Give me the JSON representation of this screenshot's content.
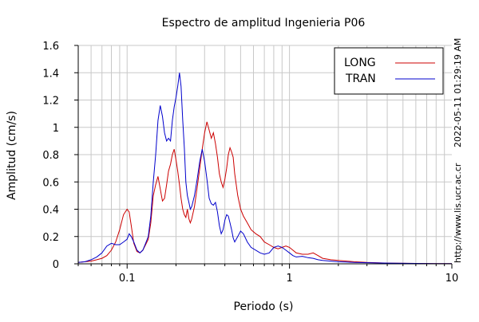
{
  "chart_data": {
    "type": "line",
    "title": "Espectro de amplitud Ingenieria P06",
    "xlabel": "Periodo (s)",
    "ylabel": "Amplitud (cm/s)",
    "x_scale": "log",
    "xlim": [
      0.05,
      10
    ],
    "ylim": [
      0,
      1.6
    ],
    "x_ticks": [
      {
        "value": 0.1,
        "label": "0.1"
      },
      {
        "value": 1,
        "label": "1"
      },
      {
        "value": 10,
        "label": "10"
      }
    ],
    "y_ticks": [
      {
        "value": 0,
        "label": "0"
      },
      {
        "value": 0.2,
        "label": "0.2"
      },
      {
        "value": 0.4,
        "label": "0.4"
      },
      {
        "value": 0.6,
        "label": "0.6"
      },
      {
        "value": 0.8,
        "label": "0.8"
      },
      {
        "value": 1,
        "label": "1"
      },
      {
        "value": 1.2,
        "label": "1.2"
      },
      {
        "value": 1.4,
        "label": "1.4"
      },
      {
        "value": 1.6,
        "label": "1.6"
      }
    ],
    "grid": true,
    "legend_position": "top-right",
    "series": [
      {
        "name": "LONG",
        "color": "#cc0000",
        "points": [
          [
            0.05,
            0.01
          ],
          [
            0.055,
            0.015
          ],
          [
            0.06,
            0.02
          ],
          [
            0.065,
            0.03
          ],
          [
            0.07,
            0.04
          ],
          [
            0.075,
            0.06
          ],
          [
            0.08,
            0.1
          ],
          [
            0.085,
            0.16
          ],
          [
            0.09,
            0.25
          ],
          [
            0.095,
            0.36
          ],
          [
            0.1,
            0.4
          ],
          [
            0.103,
            0.38
          ],
          [
            0.106,
            0.28
          ],
          [
            0.11,
            0.15
          ],
          [
            0.115,
            0.09
          ],
          [
            0.12,
            0.08
          ],
          [
            0.125,
            0.1
          ],
          [
            0.13,
            0.14
          ],
          [
            0.135,
            0.18
          ],
          [
            0.14,
            0.3
          ],
          [
            0.145,
            0.5
          ],
          [
            0.15,
            0.58
          ],
          [
            0.155,
            0.64
          ],
          [
            0.16,
            0.55
          ],
          [
            0.165,
            0.46
          ],
          [
            0.17,
            0.48
          ],
          [
            0.175,
            0.58
          ],
          [
            0.18,
            0.68
          ],
          [
            0.185,
            0.73
          ],
          [
            0.19,
            0.8
          ],
          [
            0.195,
            0.84
          ],
          [
            0.2,
            0.76
          ],
          [
            0.205,
            0.68
          ],
          [
            0.21,
            0.58
          ],
          [
            0.215,
            0.48
          ],
          [
            0.22,
            0.4
          ],
          [
            0.225,
            0.36
          ],
          [
            0.23,
            0.34
          ],
          [
            0.235,
            0.4
          ],
          [
            0.24,
            0.33
          ],
          [
            0.245,
            0.3
          ],
          [
            0.25,
            0.33
          ],
          [
            0.26,
            0.42
          ],
          [
            0.27,
            0.56
          ],
          [
            0.28,
            0.7
          ],
          [
            0.29,
            0.84
          ],
          [
            0.3,
            0.96
          ],
          [
            0.31,
            1.04
          ],
          [
            0.32,
            0.98
          ],
          [
            0.33,
            0.92
          ],
          [
            0.34,
            0.96
          ],
          [
            0.35,
            0.88
          ],
          [
            0.36,
            0.78
          ],
          [
            0.37,
            0.66
          ],
          [
            0.38,
            0.6
          ],
          [
            0.39,
            0.56
          ],
          [
            0.4,
            0.62
          ],
          [
            0.41,
            0.7
          ],
          [
            0.42,
            0.8
          ],
          [
            0.43,
            0.85
          ],
          [
            0.44,
            0.82
          ],
          [
            0.45,
            0.78
          ],
          [
            0.46,
            0.66
          ],
          [
            0.48,
            0.5
          ],
          [
            0.5,
            0.4
          ],
          [
            0.52,
            0.35
          ],
          [
            0.55,
            0.3
          ],
          [
            0.58,
            0.25
          ],
          [
            0.62,
            0.22
          ],
          [
            0.66,
            0.2
          ],
          [
            0.7,
            0.16
          ],
          [
            0.75,
            0.14
          ],
          [
            0.8,
            0.12
          ],
          [
            0.85,
            0.11
          ],
          [
            0.9,
            0.12
          ],
          [
            0.95,
            0.13
          ],
          [
            1.0,
            0.12
          ],
          [
            1.05,
            0.1
          ],
          [
            1.1,
            0.08
          ],
          [
            1.2,
            0.07
          ],
          [
            1.3,
            0.07
          ],
          [
            1.4,
            0.08
          ],
          [
            1.5,
            0.06
          ],
          [
            1.6,
            0.04
          ],
          [
            1.8,
            0.03
          ],
          [
            2.0,
            0.025
          ],
          [
            2.5,
            0.015
          ],
          [
            3.0,
            0.01
          ],
          [
            4.0,
            0.005
          ],
          [
            6.0,
            0.003
          ],
          [
            8.0,
            0.002
          ],
          [
            10.0,
            0.001
          ]
        ]
      },
      {
        "name": "TRAN",
        "color": "#0000cc",
        "points": [
          [
            0.05,
            0.01
          ],
          [
            0.055,
            0.015
          ],
          [
            0.06,
            0.03
          ],
          [
            0.065,
            0.05
          ],
          [
            0.07,
            0.08
          ],
          [
            0.075,
            0.13
          ],
          [
            0.08,
            0.15
          ],
          [
            0.085,
            0.14
          ],
          [
            0.09,
            0.14
          ],
          [
            0.095,
            0.16
          ],
          [
            0.1,
            0.18
          ],
          [
            0.103,
            0.22
          ],
          [
            0.106,
            0.2
          ],
          [
            0.11,
            0.16
          ],
          [
            0.115,
            0.1
          ],
          [
            0.12,
            0.08
          ],
          [
            0.125,
            0.1
          ],
          [
            0.13,
            0.15
          ],
          [
            0.135,
            0.2
          ],
          [
            0.14,
            0.35
          ],
          [
            0.145,
            0.6
          ],
          [
            0.15,
            0.8
          ],
          [
            0.155,
            1.05
          ],
          [
            0.16,
            1.16
          ],
          [
            0.165,
            1.08
          ],
          [
            0.17,
            0.96
          ],
          [
            0.175,
            0.9
          ],
          [
            0.18,
            0.92
          ],
          [
            0.185,
            0.9
          ],
          [
            0.19,
            1.05
          ],
          [
            0.195,
            1.15
          ],
          [
            0.2,
            1.22
          ],
          [
            0.205,
            1.3
          ],
          [
            0.21,
            1.4
          ],
          [
            0.215,
            1.3
          ],
          [
            0.22,
            1.05
          ],
          [
            0.225,
            0.85
          ],
          [
            0.23,
            0.6
          ],
          [
            0.235,
            0.5
          ],
          [
            0.24,
            0.45
          ],
          [
            0.245,
            0.4
          ],
          [
            0.25,
            0.42
          ],
          [
            0.26,
            0.5
          ],
          [
            0.27,
            0.62
          ],
          [
            0.28,
            0.75
          ],
          [
            0.29,
            0.84
          ],
          [
            0.3,
            0.75
          ],
          [
            0.31,
            0.62
          ],
          [
            0.32,
            0.48
          ],
          [
            0.33,
            0.44
          ],
          [
            0.34,
            0.43
          ],
          [
            0.35,
            0.45
          ],
          [
            0.36,
            0.38
          ],
          [
            0.37,
            0.28
          ],
          [
            0.38,
            0.22
          ],
          [
            0.39,
            0.25
          ],
          [
            0.4,
            0.32
          ],
          [
            0.41,
            0.36
          ],
          [
            0.42,
            0.35
          ],
          [
            0.43,
            0.3
          ],
          [
            0.44,
            0.25
          ],
          [
            0.45,
            0.19
          ],
          [
            0.46,
            0.16
          ],
          [
            0.48,
            0.2
          ],
          [
            0.5,
            0.24
          ],
          [
            0.52,
            0.22
          ],
          [
            0.55,
            0.16
          ],
          [
            0.58,
            0.12
          ],
          [
            0.62,
            0.1
          ],
          [
            0.66,
            0.08
          ],
          [
            0.7,
            0.07
          ],
          [
            0.75,
            0.08
          ],
          [
            0.8,
            0.12
          ],
          [
            0.85,
            0.13
          ],
          [
            0.9,
            0.12
          ],
          [
            0.95,
            0.1
          ],
          [
            1.0,
            0.08
          ],
          [
            1.05,
            0.06
          ],
          [
            1.1,
            0.05
          ],
          [
            1.2,
            0.055
          ],
          [
            1.3,
            0.045
          ],
          [
            1.4,
            0.04
          ],
          [
            1.5,
            0.03
          ],
          [
            1.6,
            0.025
          ],
          [
            1.8,
            0.02
          ],
          [
            2.0,
            0.015
          ],
          [
            2.5,
            0.01
          ],
          [
            3.0,
            0.008
          ],
          [
            4.0,
            0.005
          ],
          [
            6.0,
            0.003
          ],
          [
            8.0,
            0.002
          ],
          [
            10.0,
            0.001
          ]
        ]
      }
    ]
  },
  "side_texts": {
    "timestamp": "2022-05-11 01:29:19 AM",
    "url": "http://www.lis.ucr.ac.cr"
  }
}
